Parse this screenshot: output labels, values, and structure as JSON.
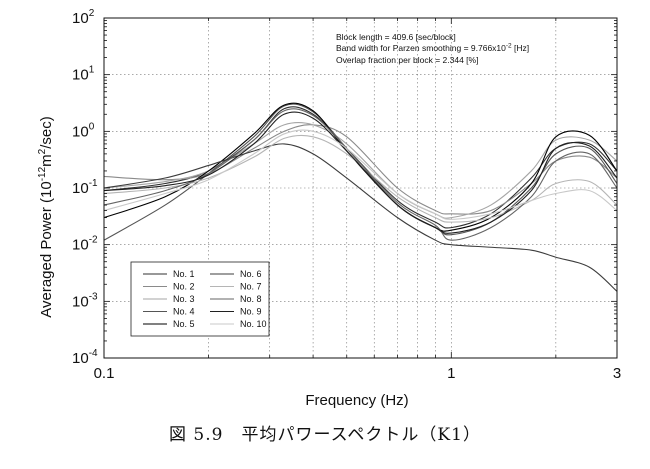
{
  "chart_data": {
    "type": "line",
    "xscale": "log",
    "yscale": "log",
    "xlim": [
      0.1,
      3
    ],
    "ylim": [
      0.0001,
      100
    ],
    "xlabel": "Frequency (Hz)",
    "ylabel_main": "Averaged Power (10",
    "ylabel_exp": "-12",
    "ylabel_mid": "m",
    "ylabel_exp2": "2",
    "ylabel_end": "/sec)",
    "x_ticks": [
      {
        "v": 0.1,
        "label": "0.1"
      },
      {
        "v": 1,
        "label": "1"
      },
      {
        "v": 3,
        "label": "3"
      }
    ],
    "y_ticks": [
      {
        "v": 100,
        "base": "10",
        "exp": "2"
      },
      {
        "v": 10,
        "base": "10",
        "exp": "1"
      },
      {
        "v": 1,
        "base": "10",
        "exp": "0"
      },
      {
        "v": 0.1,
        "base": "10",
        "exp": "-1"
      },
      {
        "v": 0.01,
        "base": "10",
        "exp": "-2"
      },
      {
        "v": 0.001,
        "base": "10",
        "exp": "-3"
      },
      {
        "v": 0.0001,
        "base": "10",
        "exp": "-4"
      }
    ],
    "grid": "dotted",
    "annotations": [
      "Block length = 409.6 [sec/block]",
      "Band width for Parzen smoothing = 9.766x10",
      "Overlap fraction per block = 2.344 [%]"
    ],
    "annotation_exp": "-2",
    "annotation_unit": " [Hz]",
    "legend_position": "bottom-left",
    "series": [
      {
        "name": "No. 1",
        "color": "#303030",
        "x": [
          0.1,
          0.15,
          0.2,
          0.27,
          0.33,
          0.4,
          0.5,
          0.7,
          0.9,
          1.0,
          1.3,
          1.7,
          2.0,
          2.5,
          3.0
        ],
        "y": [
          0.09,
          0.12,
          0.2,
          0.7,
          2.5,
          2.0,
          0.5,
          0.06,
          0.025,
          0.02,
          0.035,
          0.15,
          0.5,
          0.6,
          0.2
        ]
      },
      {
        "name": "No. 2",
        "color": "#8a8a8a",
        "x": [
          0.1,
          0.15,
          0.2,
          0.27,
          0.33,
          0.4,
          0.5,
          0.7,
          0.9,
          1.0,
          1.3,
          1.7,
          2.0,
          2.5,
          3.0
        ],
        "y": [
          0.16,
          0.14,
          0.18,
          0.5,
          1.0,
          1.3,
          0.8,
          0.1,
          0.04,
          0.035,
          0.04,
          0.12,
          0.3,
          0.35,
          0.15
        ]
      },
      {
        "name": "No. 3",
        "color": "#a5a5a5",
        "x": [
          0.1,
          0.15,
          0.2,
          0.27,
          0.33,
          0.4,
          0.5,
          0.7,
          0.9,
          1.0,
          1.3,
          1.7,
          2.0,
          2.5,
          3.0
        ],
        "y": [
          0.1,
          0.13,
          0.2,
          0.6,
          1.3,
          1.3,
          0.6,
          0.08,
          0.035,
          0.03,
          0.05,
          0.2,
          0.7,
          0.7,
          0.3
        ]
      },
      {
        "name": "No. 4",
        "color": "#555555",
        "x": [
          0.1,
          0.15,
          0.2,
          0.27,
          0.33,
          0.4,
          0.5,
          0.7,
          0.9,
          1.0,
          1.3,
          1.7,
          2.0,
          2.5,
          3.0
        ],
        "y": [
          0.012,
          0.05,
          0.18,
          0.8,
          2.8,
          2.2,
          0.5,
          0.05,
          0.02,
          0.015,
          0.025,
          0.1,
          0.4,
          0.5,
          0.12
        ]
      },
      {
        "name": "No. 5",
        "color": "#000000",
        "x": [
          0.1,
          0.15,
          0.2,
          0.27,
          0.33,
          0.4,
          0.5,
          0.7,
          0.9,
          1.0,
          1.3,
          1.7,
          2.0,
          2.5,
          3.0
        ],
        "y": [
          0.03,
          0.07,
          0.2,
          0.9,
          2.9,
          2.3,
          0.45,
          0.05,
          0.02,
          0.018,
          0.03,
          0.12,
          0.8,
          0.85,
          0.2
        ]
      },
      {
        "name": "No. 6",
        "color": "#3c3c3c",
        "x": [
          0.1,
          0.15,
          0.2,
          0.27,
          0.33,
          0.4,
          0.5,
          0.7,
          0.9,
          1.0,
          1.3,
          1.7,
          2.0,
          2.5,
          3.0
        ],
        "y": [
          0.1,
          0.15,
          0.25,
          0.45,
          0.6,
          0.4,
          0.15,
          0.03,
          0.012,
          0.01,
          0.009,
          0.008,
          0.006,
          0.004,
          0.0015
        ]
      },
      {
        "name": "No. 7",
        "color": "#b5b5b5",
        "x": [
          0.1,
          0.15,
          0.2,
          0.27,
          0.33,
          0.4,
          0.5,
          0.7,
          0.9,
          1.0,
          1.3,
          1.7,
          2.0,
          2.5,
          3.0
        ],
        "y": [
          0.08,
          0.1,
          0.15,
          0.35,
          0.75,
          0.8,
          0.4,
          0.07,
          0.03,
          0.025,
          0.03,
          0.06,
          0.12,
          0.13,
          0.05
        ]
      },
      {
        "name": "No. 8",
        "color": "#656565",
        "x": [
          0.1,
          0.15,
          0.2,
          0.27,
          0.33,
          0.4,
          0.5,
          0.7,
          0.9,
          1.0,
          1.3,
          1.7,
          2.0,
          2.5,
          3.0
        ],
        "y": [
          0.05,
          0.09,
          0.18,
          0.7,
          2.3,
          1.9,
          0.5,
          0.055,
          0.022,
          0.012,
          0.02,
          0.07,
          0.3,
          0.4,
          0.1
        ]
      },
      {
        "name": "No. 9",
        "color": "#202020",
        "x": [
          0.1,
          0.15,
          0.2,
          0.27,
          0.33,
          0.4,
          0.5,
          0.7,
          0.9,
          1.0,
          1.3,
          1.7,
          2.0,
          2.5,
          3.0
        ],
        "y": [
          0.09,
          0.11,
          0.17,
          0.6,
          2.0,
          1.7,
          0.45,
          0.05,
          0.02,
          0.016,
          0.025,
          0.09,
          0.5,
          0.55,
          0.15
        ]
      },
      {
        "name": "No. 10",
        "color": "#c8c8c8",
        "x": [
          0.1,
          0.15,
          0.2,
          0.27,
          0.33,
          0.4,
          0.5,
          0.7,
          0.9,
          1.0,
          1.3,
          1.7,
          2.0,
          2.5,
          3.0
        ],
        "y": [
          0.04,
          0.08,
          0.14,
          0.4,
          0.9,
          1.0,
          0.5,
          0.08,
          0.035,
          0.028,
          0.035,
          0.06,
          0.08,
          0.09,
          0.04
        ]
      }
    ]
  },
  "caption": "図 5.9　平均パワースペクトル（K1）"
}
